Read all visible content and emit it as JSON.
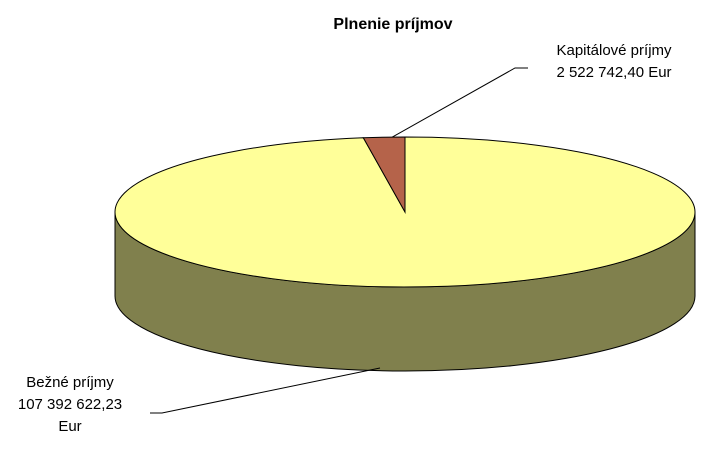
{
  "chart_data": {
    "type": "pie3d",
    "title": "Plnenie príjmov",
    "categories": [
      "Bežné príjmy",
      "Kapitálové príjmy"
    ],
    "values": [
      107392622.23,
      2522742.4
    ],
    "value_labels": [
      "107 392 622,23 Eur",
      "2 522 742,40 Eur"
    ],
    "colors": [
      "#ffff99",
      "#b5634a"
    ]
  }
}
